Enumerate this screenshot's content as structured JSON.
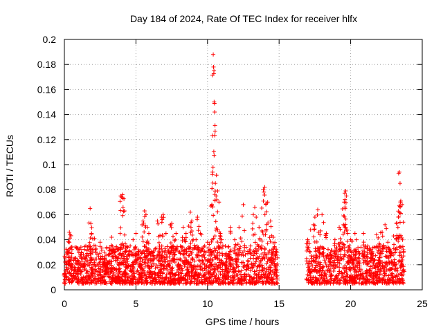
{
  "chart_data": {
    "type": "scatter",
    "title": "Day 184 of 2024, Rate Of TEC Index for receiver hlfx",
    "xlabel": "GPS time / hours",
    "ylabel": "ROTI / TECUs",
    "xlim": [
      0,
      25
    ],
    "ylim": [
      0,
      0.2
    ],
    "xticks": [
      0,
      5,
      10,
      15,
      20,
      25
    ],
    "yticks": [
      0,
      0.02,
      0.04,
      0.06,
      0.08,
      0.1,
      0.12,
      0.14,
      0.16,
      0.18,
      0.2
    ],
    "xtick_labels": [
      "0",
      "5",
      "10",
      "15",
      "20",
      "25"
    ],
    "ytick_labels": [
      "0",
      "0.02",
      "0.04",
      "0.06",
      "0.08",
      "0.1",
      "0.12",
      "0.14",
      "0.16",
      "0.18",
      "0.2"
    ],
    "grid": true,
    "marker": "+",
    "color": "#ff0000",
    "data_gap_hours": [
      14.9,
      16.9
    ],
    "series": [
      {
        "name": "ROTI",
        "x": [
          0.0,
          0.3,
          0.35,
          0.4,
          0.5,
          0.8,
          1.0,
          1.2,
          1.5,
          1.8,
          1.85,
          1.9,
          2.0,
          2.1,
          2.2,
          2.5,
          2.8,
          3.0,
          3.3,
          3.5,
          3.8,
          4.0,
          4.05,
          4.1,
          4.2,
          4.4,
          4.6,
          4.8,
          5.0,
          5.2,
          5.5,
          5.6,
          5.7,
          5.8,
          5.9,
          6.0,
          6.2,
          6.5,
          6.8,
          6.9,
          7.0,
          7.1,
          7.4,
          7.5,
          7.6,
          7.8,
          8.0,
          8.3,
          8.5,
          8.8,
          8.9,
          9.0,
          9.2,
          9.3,
          9.5,
          9.8,
          10.0,
          10.2,
          10.3,
          10.35,
          10.4,
          10.42,
          10.45,
          10.5,
          10.55,
          10.6,
          10.7,
          10.8,
          10.9,
          11.0,
          11.3,
          11.6,
          11.9,
          12.2,
          12.5,
          12.7,
          12.8,
          13.0,
          13.2,
          13.3,
          13.5,
          13.6,
          13.8,
          13.9,
          14.0,
          14.1,
          14.2,
          14.4,
          14.6,
          14.8,
          17.0,
          17.2,
          17.4,
          17.5,
          17.7,
          17.9,
          18.0,
          18.3,
          18.6,
          18.9,
          19.2,
          19.3,
          19.5,
          19.55,
          19.6,
          19.65,
          19.7,
          19.8,
          20.0,
          20.3,
          20.6,
          20.9,
          21.2,
          21.5,
          21.8,
          22.0,
          22.2,
          22.4,
          22.6,
          22.8,
          23.0,
          23.2,
          23.3,
          23.35,
          23.4,
          23.45,
          23.5,
          23.6
        ],
        "y": [
          0.012,
          0.03,
          0.046,
          0.044,
          0.02,
          0.025,
          0.018,
          0.03,
          0.035,
          0.065,
          0.053,
          0.045,
          0.02,
          0.041,
          0.035,
          0.038,
          0.025,
          0.02,
          0.042,
          0.03,
          0.02,
          0.074,
          0.076,
          0.066,
          0.063,
          0.025,
          0.035,
          0.04,
          0.045,
          0.03,
          0.055,
          0.063,
          0.06,
          0.05,
          0.045,
          0.025,
          0.03,
          0.055,
          0.058,
          0.06,
          0.03,
          0.045,
          0.052,
          0.053,
          0.035,
          0.045,
          0.02,
          0.05,
          0.045,
          0.062,
          0.055,
          0.04,
          0.04,
          0.058,
          0.045,
          0.035,
          0.038,
          0.03,
          0.068,
          0.094,
          0.188,
          0.178,
          0.175,
          0.142,
          0.085,
          0.075,
          0.079,
          0.07,
          0.045,
          0.04,
          0.025,
          0.05,
          0.04,
          0.05,
          0.068,
          0.034,
          0.02,
          0.035,
          0.06,
          0.066,
          0.036,
          0.05,
          0.047,
          0.08,
          0.082,
          0.069,
          0.07,
          0.055,
          0.042,
          0.03,
          0.04,
          0.048,
          0.052,
          0.058,
          0.064,
          0.047,
          0.06,
          0.045,
          0.03,
          0.04,
          0.05,
          0.038,
          0.052,
          0.07,
          0.072,
          0.079,
          0.075,
          0.045,
          0.04,
          0.045,
          0.025,
          0.045,
          0.035,
          0.03,
          0.044,
          0.037,
          0.046,
          0.052,
          0.038,
          0.03,
          0.043,
          0.053,
          0.05,
          0.093,
          0.094,
          0.085,
          0.071,
          0.068
        ],
        "baseline_band": [
          0.005,
          0.035
        ]
      }
    ]
  }
}
